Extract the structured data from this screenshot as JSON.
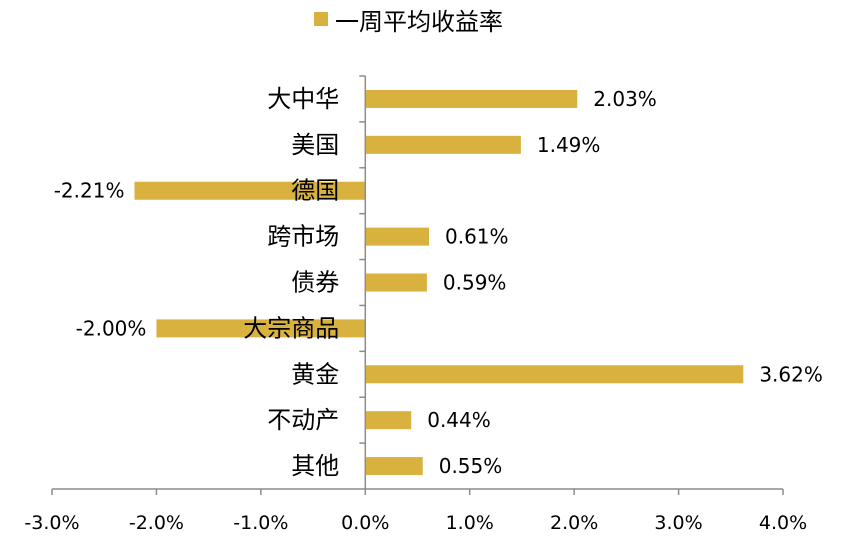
{
  "chart_data": {
    "type": "bar",
    "orientation": "horizontal",
    "categories": [
      "大中华",
      "美国",
      "德国",
      "跨市场",
      "债券",
      "大宗商品",
      "黄金",
      "不动产",
      "其他"
    ],
    "series": [
      {
        "name": "一周平均收益率",
        "values": [
          2.03,
          1.49,
          -2.21,
          0.61,
          0.59,
          -2.0,
          3.62,
          0.44,
          0.55
        ],
        "labels": [
          "2.03%",
          "1.49%",
          "-2.21%",
          "0.61%",
          "0.59%",
          "-2.00%",
          "3.62%",
          "0.44%",
          "0.55%"
        ]
      }
    ],
    "x_ticks": [
      -3,
      -2,
      -1,
      0,
      1,
      2,
      3,
      4
    ],
    "x_tick_labels": [
      "-3.0%",
      "-2.0%",
      "-1.0%",
      "0.0%",
      "1.0%",
      "2.0%",
      "3.0%",
      "4.0%"
    ],
    "xlim": [
      -3,
      4
    ],
    "grid": false,
    "legend_position": "top",
    "bar_color": "#d8b13f",
    "title": "",
    "xlabel": "",
    "ylabel": ""
  }
}
